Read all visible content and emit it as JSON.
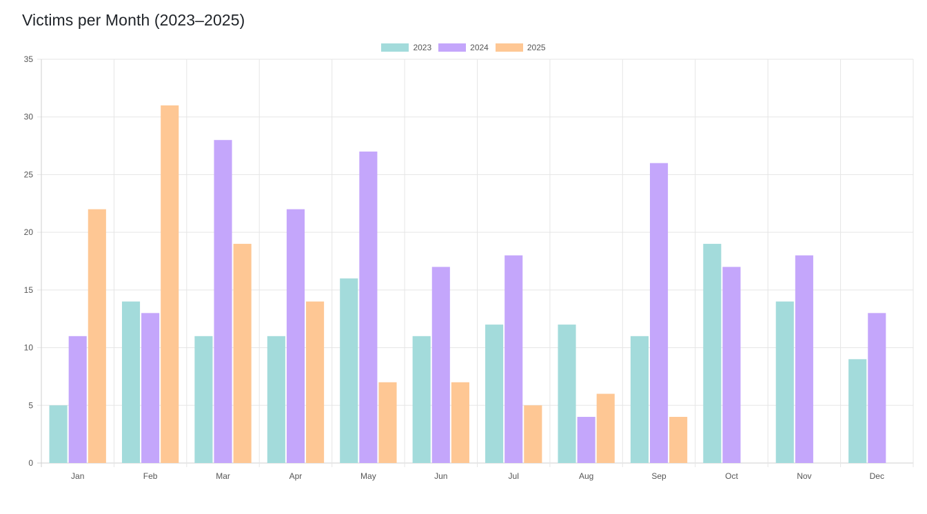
{
  "chart_data": {
    "type": "bar",
    "title": "Victims per Month (2023–2025)",
    "xlabel": "",
    "ylabel": "",
    "ylim": [
      0,
      35
    ],
    "yticks": [
      0,
      5,
      10,
      15,
      20,
      25,
      30,
      35
    ],
    "categories": [
      "Jan",
      "Feb",
      "Mar",
      "Apr",
      "May",
      "Jun",
      "Jul",
      "Aug",
      "Sep",
      "Oct",
      "Nov",
      "Dec"
    ],
    "legend_position": "top-center",
    "grid": true,
    "series": [
      {
        "name": "2023",
        "color": "#a3dbdb",
        "values": [
          5,
          14,
          11,
          11,
          16,
          11,
          12,
          12,
          11,
          19,
          14,
          9
        ]
      },
      {
        "name": "2024",
        "color": "#c4a6fb",
        "values": [
          11,
          13,
          28,
          22,
          27,
          17,
          18,
          4,
          26,
          17,
          18,
          13
        ]
      },
      {
        "name": "2025",
        "color": "#fec794",
        "values": [
          22,
          31,
          19,
          14,
          7,
          7,
          5,
          6,
          4,
          null,
          null,
          null
        ]
      }
    ]
  }
}
